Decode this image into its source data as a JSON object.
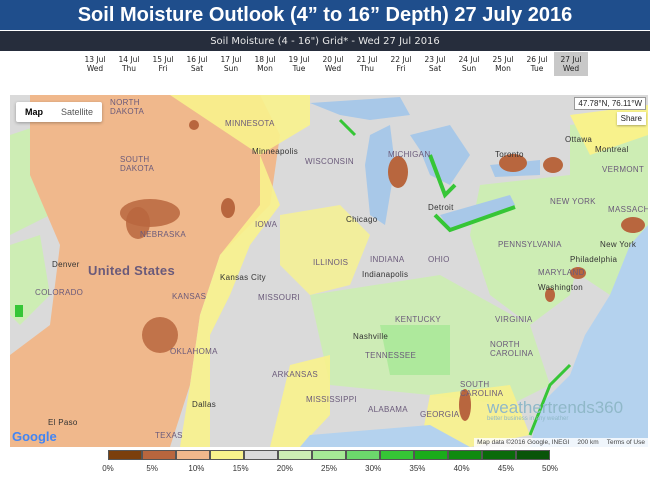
{
  "title": "Soil Moisture Outlook (4” to 16” Depth) 27 July 2016",
  "subtitle": "Soil Moisture (4 - 16\") Grid* - Wed 27 Jul 2016",
  "dates": [
    {
      "date": "13 Jul",
      "day": "Wed"
    },
    {
      "date": "14 Jul",
      "day": "Thu"
    },
    {
      "date": "15 Jul",
      "day": "Fri"
    },
    {
      "date": "16 Jul",
      "day": "Sat"
    },
    {
      "date": "17 Jul",
      "day": "Sun"
    },
    {
      "date": "18 Jul",
      "day": "Mon"
    },
    {
      "date": "19 Jul",
      "day": "Tue"
    },
    {
      "date": "20 Jul",
      "day": "Wed"
    },
    {
      "date": "21 Jul",
      "day": "Thu"
    },
    {
      "date": "22 Jul",
      "day": "Fri"
    },
    {
      "date": "23 Jul",
      "day": "Sat"
    },
    {
      "date": "24 Jul",
      "day": "Sun"
    },
    {
      "date": "25 Jul",
      "day": "Mon"
    },
    {
      "date": "26 Jul",
      "day": "Tue"
    },
    {
      "date": "27 Jul",
      "day": "Wed"
    }
  ],
  "selected_date_index": 14,
  "map_type": {
    "map": "Map",
    "satellite": "Satellite"
  },
  "coordinates": "47.78°N, 76.11°W",
  "share": "Share",
  "labels": {
    "north_dakota": "NORTH\nDAKOTA",
    "south_dakota": "SOUTH\nDAKOTA",
    "minnesota": "MINNESOTA",
    "minneapolis": "Minneapolis",
    "wisconsin": "WISCONSIN",
    "michigan": "MICHIGAN",
    "toronto": "Toronto",
    "ottawa": "Ottawa",
    "montreal": "Montreal",
    "vermont": "VERMONT",
    "massachusetts": "MASSACHUSE",
    "new_york": "NEW YORK",
    "new_york_city": "New York",
    "nebraska": "NEBRASKA",
    "iowa": "IOWA",
    "chicago": "Chicago",
    "detroit": "Detroit",
    "denver": "Denver",
    "united_states": "United States",
    "colorado": "COLORADO",
    "kansas": "KANSAS",
    "kansas_city": "Kansas City",
    "missouri": "MISSOURI",
    "illinois": "ILLINOIS",
    "indiana": "INDIANA",
    "indianapolis": "Indianapolis",
    "ohio": "OHIO",
    "pennsylvania": "PENNSYLVANIA",
    "maryland": "MARYLAND",
    "oklahoma": "OKLAHOMA",
    "kentucky": "KENTUCKY",
    "virginia": "VIRGINIA",
    "nashville": "Nashville",
    "tennessee": "TENNESSEE",
    "north_carolina": "NORTH\nCAROLINA",
    "arkansas": "ARKANSAS",
    "south_carolina": "SOUTH\nCAROLINA",
    "dallas": "Dallas",
    "mississippi": "MISSISSIPPI",
    "alabama": "ALABAMA",
    "georgia": "GEORGIA",
    "texas": "TEXAS",
    "el_paso": "El Paso",
    "washington": "Washington",
    "philadelphia": "Philadelphia"
  },
  "google_logo": "Google",
  "attribution": {
    "data": "Map data ©2016 Google, INEGI",
    "scale": "200 km",
    "terms": "Terms of Use"
  },
  "brand": {
    "name": "weathertrends360",
    "tagline": "better business in any weather"
  },
  "legend": {
    "colors": [
      "#7b3f0c",
      "#b8663e",
      "#f0b88c",
      "#f8f28c",
      "#dadada",
      "#cdedb4",
      "#a6e896",
      "#6cd86c",
      "#36c636",
      "#1aac1a",
      "#0f8a0f",
      "#0a6a0a",
      "#085408"
    ],
    "labels": [
      "0%",
      "5%",
      "10%",
      "15%",
      "20%",
      "25%",
      "30%",
      "35%",
      "40%",
      "45%",
      "50%"
    ]
  }
}
